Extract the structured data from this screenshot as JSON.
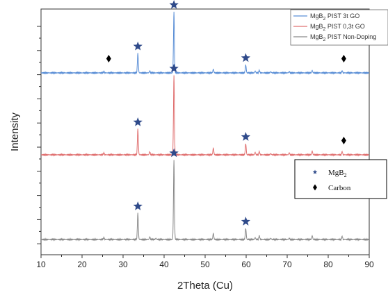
{
  "chart_data": {
    "type": "line",
    "title": "",
    "xlabel": "2Theta (Cu)",
    "ylabel": "Intensity",
    "xlim": [
      10,
      90
    ],
    "x_ticks": [
      10,
      20,
      30,
      40,
      50,
      60,
      70,
      80,
      90
    ],
    "y_tick_labels": "none",
    "grid": false,
    "series_legend": {
      "placement": "top-right",
      "entries": [
        {
          "label_main": "MgB",
          "label_sub": "2",
          "label_rest": " PIST 3t GO",
          "color": "#5b8fd6"
        },
        {
          "label_main": "MgB",
          "label_sub": "2",
          "label_rest": " PIST 0,3t GO",
          "color": "#e07070"
        },
        {
          "label_main": "MgB",
          "label_sub": "2",
          "label_rest": " PIST Non-Doping",
          "color": "#8a8a8a"
        }
      ]
    },
    "marker_legend": {
      "placement": "right",
      "entries": [
        {
          "symbol": "star",
          "label_main": "MgB",
          "label_sub": "2",
          "color": "#2f4a8a"
        },
        {
          "symbol": "diamond",
          "label_main": "Carbon",
          "label_sub": "",
          "color": "#000000"
        }
      ]
    },
    "series": [
      {
        "name": "MgB2 PIST 3t GO",
        "color": "#5b8fd6",
        "offset": 2,
        "peaks": [
          {
            "x": 25.3,
            "h": 0.02
          },
          {
            "x": 33.6,
            "h": 0.32
          },
          {
            "x": 36.5,
            "h": 0.03
          },
          {
            "x": 42.4,
            "h": 1.0
          },
          {
            "x": 52.0,
            "h": 0.06
          },
          {
            "x": 59.9,
            "h": 0.13
          },
          {
            "x": 62.2,
            "h": 0.03
          },
          {
            "x": 63.2,
            "h": 0.04
          },
          {
            "x": 66.0,
            "h": 0.02
          },
          {
            "x": 70.5,
            "h": 0.02
          },
          {
            "x": 76.1,
            "h": 0.04
          },
          {
            "x": 83.4,
            "h": 0.03
          }
        ]
      },
      {
        "name": "MgB2 PIST 0,3t GO",
        "color": "#e07070",
        "offset": 1,
        "peaks": [
          {
            "x": 25.3,
            "h": 0.03
          },
          {
            "x": 33.6,
            "h": 0.42
          },
          {
            "x": 36.5,
            "h": 0.05
          },
          {
            "x": 42.4,
            "h": 1.3
          },
          {
            "x": 52.0,
            "h": 0.11
          },
          {
            "x": 59.9,
            "h": 0.18
          },
          {
            "x": 62.2,
            "h": 0.04
          },
          {
            "x": 63.2,
            "h": 0.05
          },
          {
            "x": 66.0,
            "h": 0.02
          },
          {
            "x": 70.5,
            "h": 0.03
          },
          {
            "x": 76.1,
            "h": 0.06
          },
          {
            "x": 83.4,
            "h": 0.05
          }
        ]
      },
      {
        "name": "MgB2 PIST Non-Doping",
        "color": "#8a8a8a",
        "offset": 0,
        "peaks": [
          {
            "x": 25.3,
            "h": 0.03
          },
          {
            "x": 33.6,
            "h": 0.43
          },
          {
            "x": 36.5,
            "h": 0.04
          },
          {
            "x": 38.0,
            "h": 0.02
          },
          {
            "x": 42.4,
            "h": 1.3
          },
          {
            "x": 52.0,
            "h": 0.1
          },
          {
            "x": 59.9,
            "h": 0.18
          },
          {
            "x": 62.2,
            "h": 0.03
          },
          {
            "x": 63.2,
            "h": 0.06
          },
          {
            "x": 66.0,
            "h": 0.02
          },
          {
            "x": 70.5,
            "h": 0.02
          },
          {
            "x": 76.1,
            "h": 0.06
          },
          {
            "x": 83.4,
            "h": 0.05
          }
        ]
      }
    ],
    "annotations": [
      {
        "symbol": "star",
        "x": 33.6,
        "series": 0,
        "height": 0.32
      },
      {
        "symbol": "star",
        "x": 42.4,
        "series": 0,
        "height": 1.0
      },
      {
        "symbol": "star",
        "x": 59.9,
        "series": 0,
        "height": 0.13
      },
      {
        "symbol": "diamond",
        "x": 26.5,
        "series": 0,
        "height": 0.12
      },
      {
        "symbol": "diamond",
        "x": 83.8,
        "series": 0,
        "height": 0.12
      },
      {
        "symbol": "star",
        "x": 33.6,
        "series": 1,
        "height": 0.42
      },
      {
        "symbol": "star",
        "x": 42.4,
        "series": 1,
        "height": 1.3
      },
      {
        "symbol": "star",
        "x": 59.9,
        "series": 1,
        "height": 0.18
      },
      {
        "symbol": "diamond",
        "x": 83.8,
        "series": 1,
        "height": 0.12
      },
      {
        "symbol": "star",
        "x": 33.6,
        "series": 2,
        "height": 0.43
      },
      {
        "symbol": "star",
        "x": 42.4,
        "series": 2,
        "height": 1.3
      },
      {
        "symbol": "star",
        "x": 59.9,
        "series": 2,
        "height": 0.18
      }
    ]
  }
}
